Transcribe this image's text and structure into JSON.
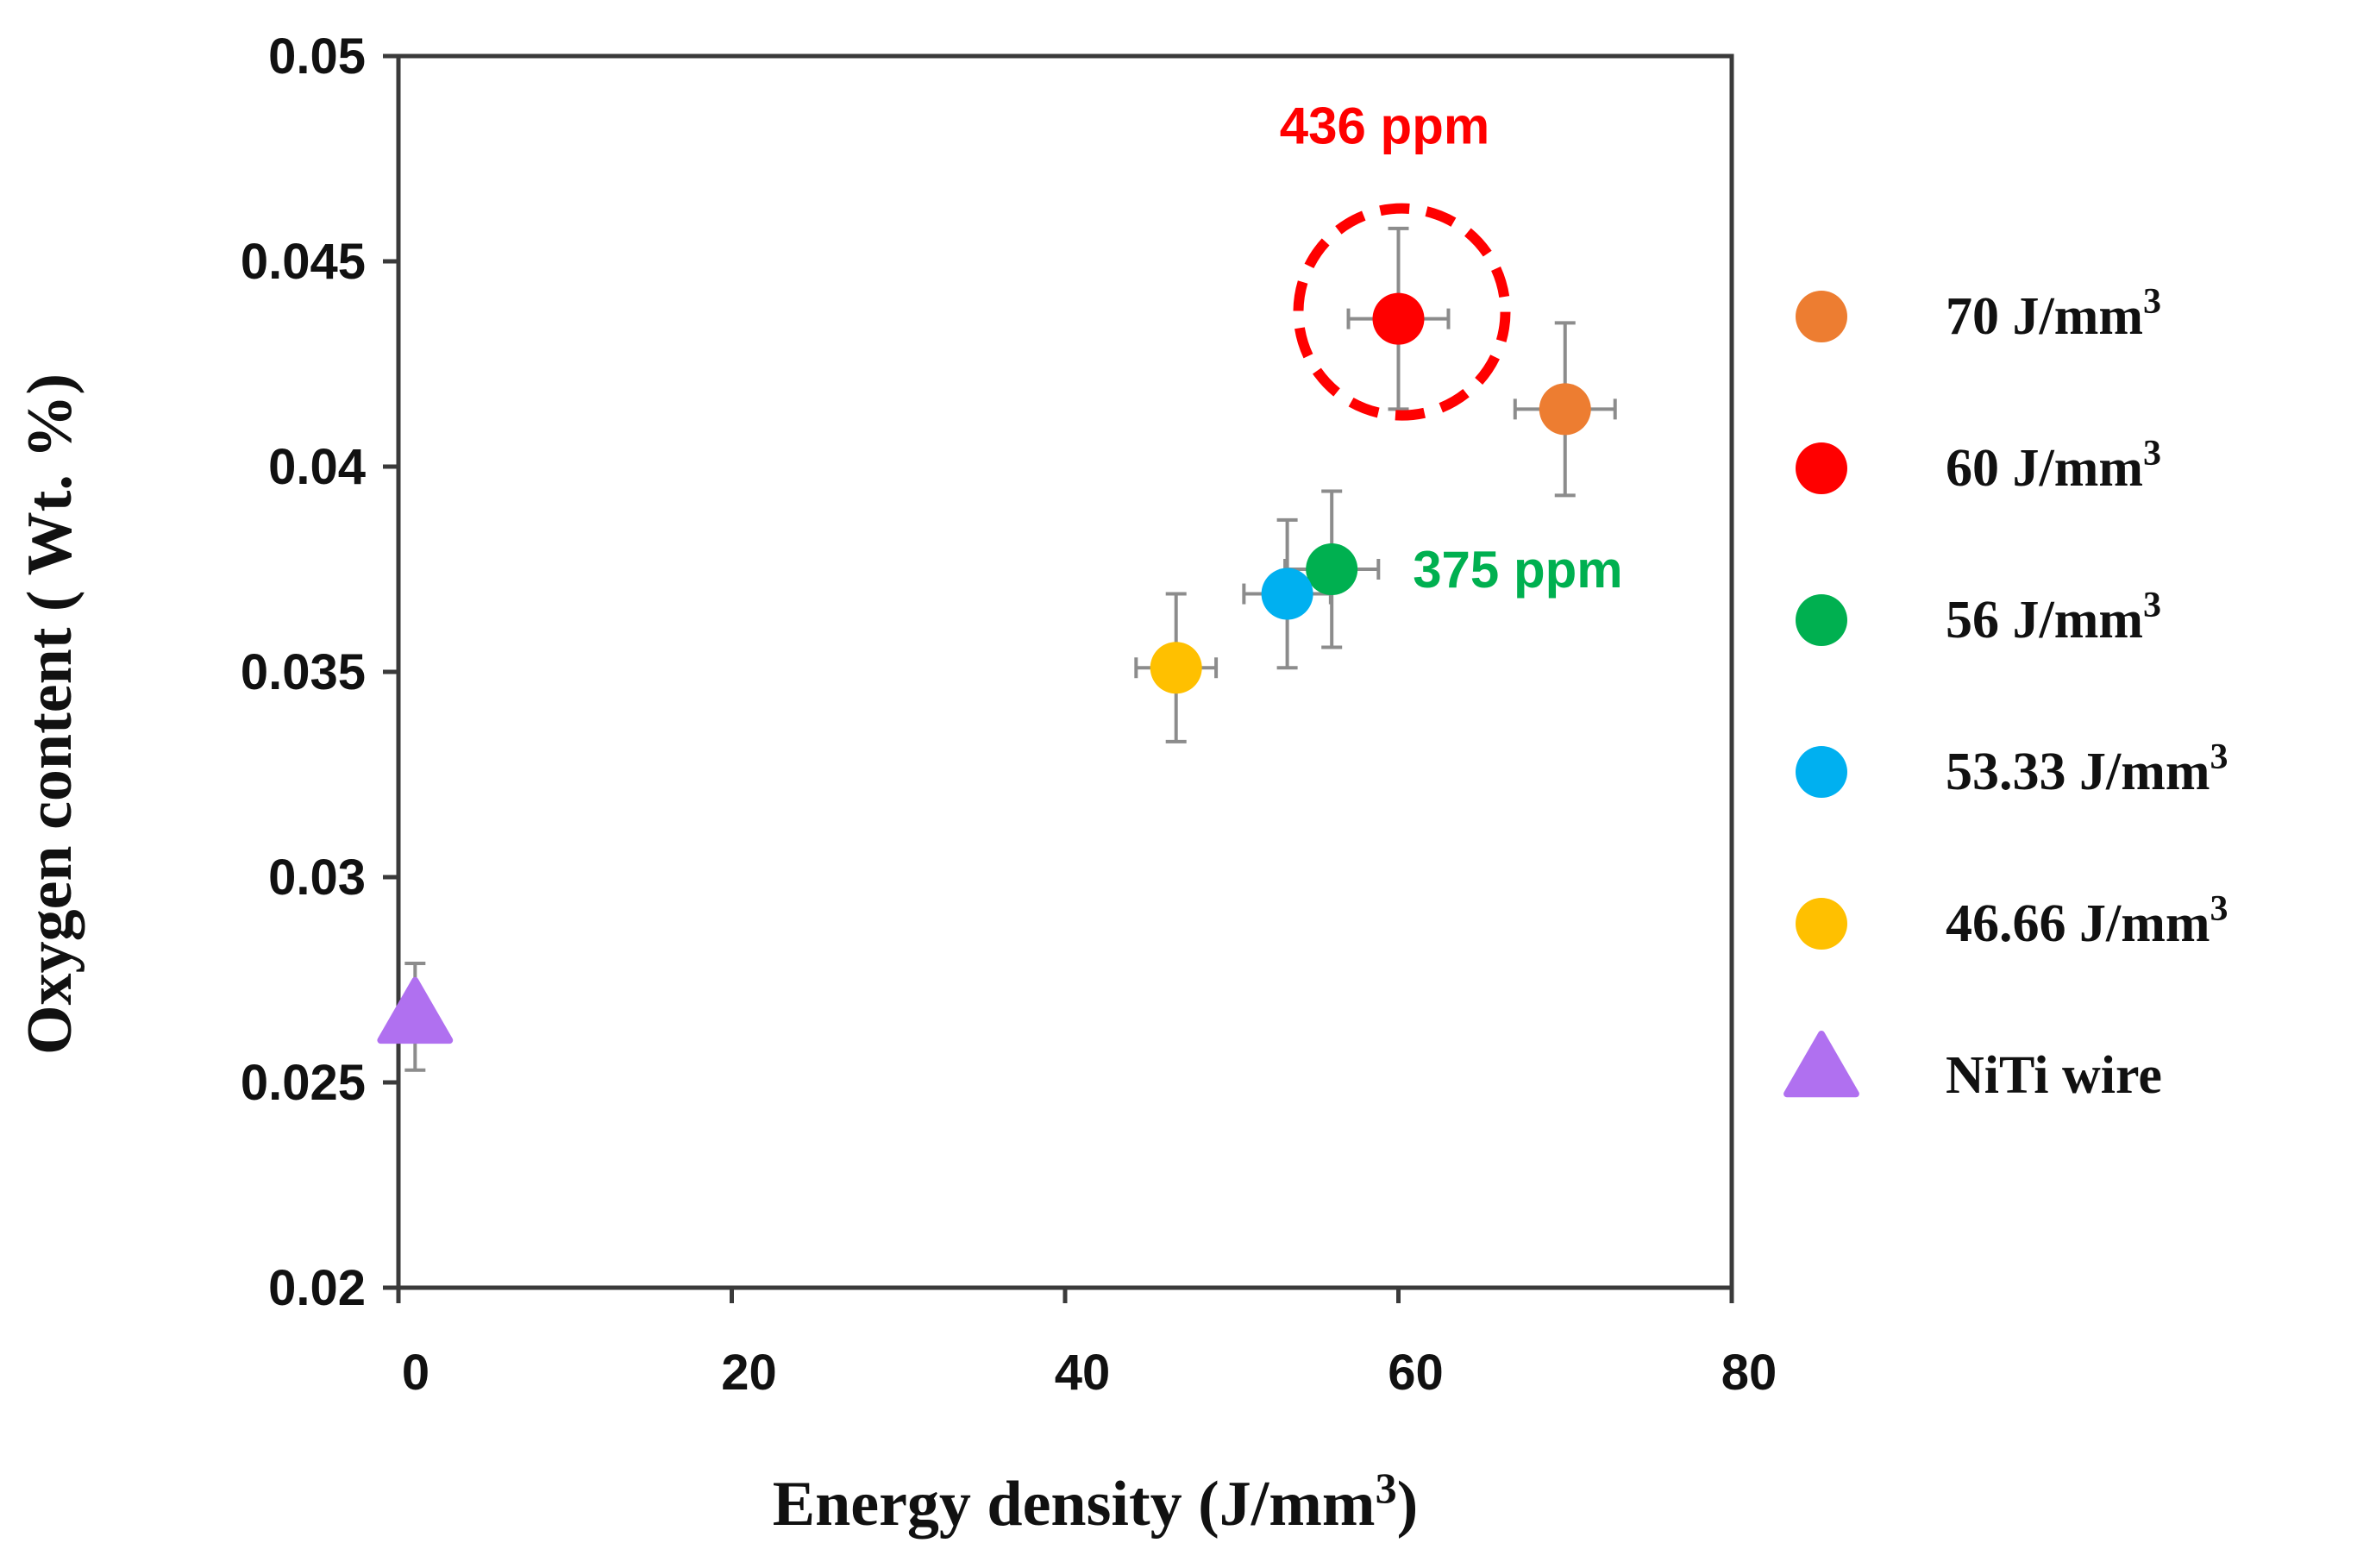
{
  "chart_data": {
    "type": "scatter",
    "xlabel": "Energy density (J/mm",
    "xlabel_sup": "3",
    "xlabel_end": ")",
    "ylabel": "Oxygen content ( Wt. %)",
    "xlim": [
      0,
      80
    ],
    "ylim": [
      0.02,
      0.05
    ],
    "x_ticks": [
      "0",
      "20",
      "40",
      "60",
      "80"
    ],
    "y_ticks": [
      "0.02",
      "0.025",
      "0.03",
      "0.035",
      "0.04",
      "0.045",
      "0.05"
    ],
    "grid": false,
    "legend_position": "right",
    "series": [
      {
        "name": "70  J/mm",
        "unit_sup": "3",
        "marker": "circle",
        "color": "#ED7D31",
        "x": 70,
        "y": 0.0414,
        "x_err": 3.0,
        "y_err": 0.0021
      },
      {
        "name": "60  J/mm",
        "unit_sup": "3",
        "marker": "circle",
        "color": "#FF0000",
        "x": 60,
        "y": 0.0436,
        "x_err": 3.0,
        "y_err": 0.0022
      },
      {
        "name": "56  J/mm",
        "unit_sup": "3",
        "marker": "circle",
        "color": "#00B050",
        "x": 56,
        "y": 0.0375,
        "x_err": 2.8,
        "y_err": 0.0019
      },
      {
        "name": "53.33  J/mm",
        "unit_sup": "3",
        "marker": "circle",
        "color": "#00B0F0",
        "x": 53.33,
        "y": 0.0369,
        "x_err": 2.6,
        "y_err": 0.0018
      },
      {
        "name": "46.66  J/mm",
        "unit_sup": "3",
        "marker": "circle",
        "color": "#FFC000",
        "x": 46.66,
        "y": 0.0351,
        "x_err": 2.4,
        "y_err": 0.0018
      },
      {
        "name": "NiTi wire",
        "unit_sup": "",
        "marker": "triangle",
        "color": "#B070F0",
        "x": 1,
        "y": 0.0266,
        "x_err": 0,
        "y_err": 0.0013
      }
    ],
    "annotations": [
      {
        "text": "436 ppm",
        "color": "#FF0000",
        "x": 60,
        "y": 0.0436,
        "circled": true
      },
      {
        "text": "375 ppm",
        "color": "#00B050",
        "x": 56,
        "y": 0.0375,
        "circled": false
      }
    ]
  }
}
